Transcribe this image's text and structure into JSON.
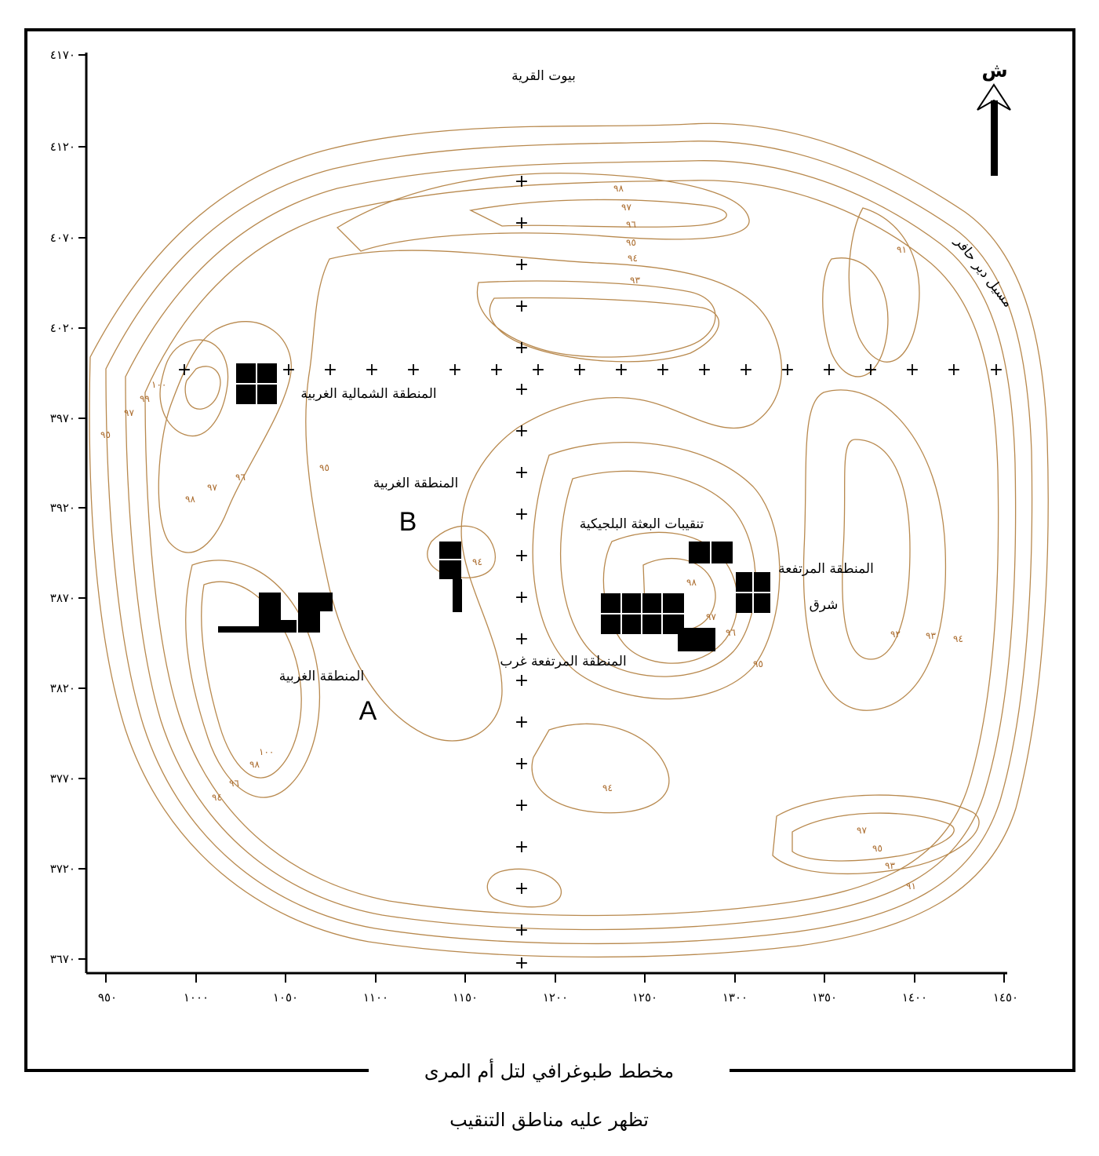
{
  "map": {
    "caption_line1": "مخطط طبوغرافي لتل أم المرى",
    "caption_line2": "تظهر عليه مناطق التنقيب",
    "north_label": "ش",
    "village_label": "بيوت القرية",
    "wadi_label": "مسيل دير حافر",
    "labels": {
      "nw_area": "المنطقة الشمالية الغربية",
      "western_b": "المنطقة الغربية",
      "b_letter": "B",
      "belgian": "تنقيبات البعثة البلجيكية",
      "raised_east_1": "المنطقة المرتفعة",
      "raised_east_2": "شرق",
      "raised_west": "المنطقة المرتفعة غرب",
      "western_a": "المنطقة الغربية",
      "a_letter": "A"
    },
    "x_ticks": [
      "٩٥٠",
      "١٠٠٠",
      "١٠٥٠",
      "١١٠٠",
      "١١٥٠",
      "١٢٠٠",
      "١٢٥٠",
      "١٣٠٠",
      "١٣٥٠",
      "١٤٠٠",
      "١٤٥٠"
    ],
    "y_ticks": [
      "٤١٧٠",
      "٤١٢٠",
      "٤٠٧٠",
      "٤٠٢٠",
      "٣٩٧٠",
      "٣٩٢٠",
      "٣٨٧٠",
      "٣٨٢٠",
      "٣٧٧٠",
      "٣٧٢٠",
      "٣٦٧٠"
    ],
    "contour_labels": {
      "c98_top": "٩٨",
      "c97_top": "٩٧",
      "c96_top": "٩٦",
      "c95_top": "٩٥",
      "c94_top": "٩٤",
      "c93_top": "٩٣",
      "c91_ne": "٩١",
      "c100_w": "١٠٠",
      "c99_w": "٩٩",
      "c97_w": "٩٧",
      "c95_w": "٩٥",
      "c95_mid": "٩٥",
      "c97_mid": "٩٧",
      "c98_mid": "٩٨",
      "c96_mid": "٩٦",
      "c94_b": "٩٤",
      "c98_c": "٩٨",
      "c97_c": "٩٧",
      "c96_c": "٩٦",
      "c95_c": "٩٥",
      "c92_e": "٩٢",
      "c93_e": "٩٣",
      "c94_e": "٩٤",
      "c94_s": "٩٤",
      "c100_sw": "١٠٠",
      "c98_sw": "٩٨",
      "c96_sw": "٩٦",
      "c94_sw": "٩٤",
      "c97_se": "٩٧",
      "c95_se": "٩٥",
      "c93_se": "٩٣",
      "c91_se": "٩١"
    },
    "colors": {
      "contour": "#b8894e",
      "contour_label": "#a9692a",
      "frame": "#000000"
    }
  }
}
